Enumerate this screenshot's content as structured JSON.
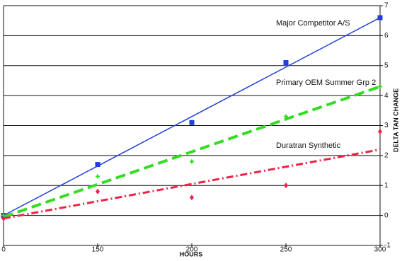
{
  "chart_data": {
    "type": "line",
    "x_label": "HOURS",
    "y_label": "DELTA TAN CHANGE",
    "categories": [
      "0",
      "150",
      "200",
      "250",
      "300"
    ],
    "ylim": [
      -1,
      7
    ],
    "yticks": [
      -1,
      0,
      1,
      2,
      3,
      4,
      5,
      6,
      7
    ],
    "grid": true,
    "series": [
      {
        "name": "Major Competitor A/S",
        "color": "#1f3fd6",
        "marker": "square",
        "line_style": "solid",
        "values": [
          0,
          1.7,
          3.1,
          5.1,
          6.6
        ],
        "trendline": [
          0,
          6.6
        ]
      },
      {
        "name": "Primary OEM Summer Grp 2",
        "color": "#33dd22",
        "marker": "plus",
        "line_style": "dashed",
        "values": [
          0,
          1.3,
          1.8,
          3.3,
          4.3
        ],
        "trendline": [
          -0.05,
          4.3
        ]
      },
      {
        "name": "Duratran Synthetic",
        "color": "#ee2244",
        "marker": "diamond",
        "line_style": "dashdot",
        "values": [
          -0.1,
          0.8,
          0.6,
          1.0,
          2.8
        ],
        "trendline": [
          -0.1,
          2.2
        ]
      }
    ]
  }
}
